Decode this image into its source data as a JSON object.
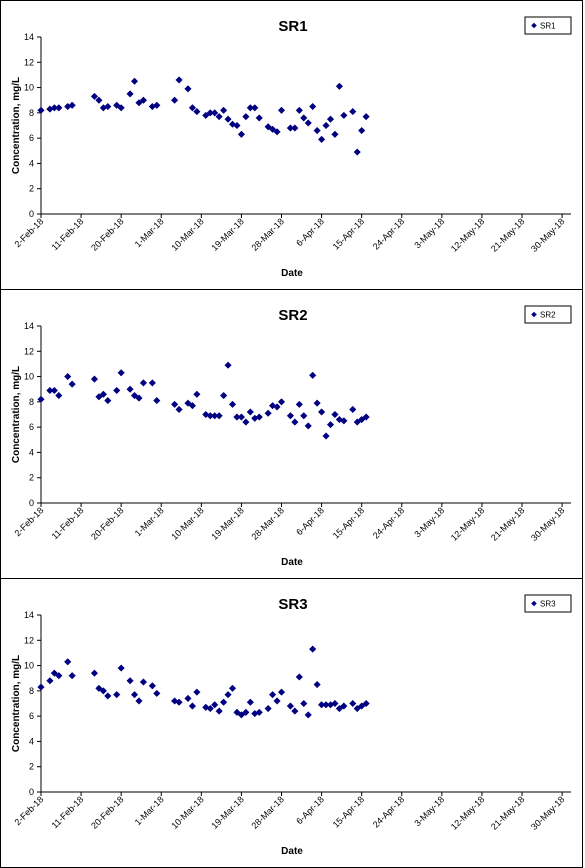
{
  "chart_data": [
    {
      "type": "scatter",
      "title": "SR1",
      "xlabel": "Date",
      "ylabel": "Concentration, mg/L",
      "ylim": [
        0,
        14
      ],
      "yticks": [
        0,
        2,
        4,
        6,
        8,
        10,
        12,
        14
      ],
      "xrange": [
        "2018-02-02",
        "2018-06-01"
      ],
      "xticks": [
        "2-Feb-18",
        "11-Feb-18",
        "20-Feb-18",
        "1-Mar-18",
        "10-Mar-18",
        "19-Mar-18",
        "28-Mar-18",
        "6-Apr-18",
        "15-Apr-18",
        "24-Apr-18",
        "3-May-18",
        "12-May-18",
        "21-May-18",
        "30-May-18"
      ],
      "grid": false,
      "legend_position": "top-right",
      "color": "#000080",
      "series": [
        {
          "name": "SR1",
          "x": [
            "2018-02-02",
            "2018-02-04",
            "2018-02-05",
            "2018-02-06",
            "2018-02-08",
            "2018-02-09",
            "2018-02-14",
            "2018-02-15",
            "2018-02-16",
            "2018-02-17",
            "2018-02-19",
            "2018-02-20",
            "2018-02-22",
            "2018-02-23",
            "2018-02-24",
            "2018-02-25",
            "2018-02-27",
            "2018-02-28",
            "2018-03-04",
            "2018-03-05",
            "2018-03-07",
            "2018-03-08",
            "2018-03-09",
            "2018-03-11",
            "2018-03-12",
            "2018-03-13",
            "2018-03-14",
            "2018-03-15",
            "2018-03-16",
            "2018-03-17",
            "2018-03-18",
            "2018-03-19",
            "2018-03-20",
            "2018-03-21",
            "2018-03-22",
            "2018-03-23",
            "2018-03-25",
            "2018-03-26",
            "2018-03-27",
            "2018-03-28",
            "2018-03-30",
            "2018-03-31",
            "2018-04-01",
            "2018-04-02",
            "2018-04-03",
            "2018-04-04",
            "2018-04-05",
            "2018-04-06",
            "2018-04-07",
            "2018-04-08",
            "2018-04-09",
            "2018-04-10",
            "2018-04-11",
            "2018-04-13",
            "2018-04-14",
            "2018-04-15",
            "2018-04-16"
          ],
          "y": [
            8.2,
            8.3,
            8.4,
            8.4,
            8.5,
            8.6,
            9.3,
            9.0,
            8.4,
            8.5,
            8.6,
            8.4,
            9.5,
            10.5,
            8.8,
            9.0,
            8.5,
            8.6,
            9.0,
            10.6,
            9.9,
            8.4,
            8.1,
            7.8,
            8.0,
            8.0,
            7.7,
            8.2,
            7.5,
            7.1,
            7.0,
            6.3,
            7.7,
            8.4,
            8.4,
            7.6,
            6.9,
            6.7,
            6.5,
            8.2,
            6.8,
            6.8,
            8.2,
            7.6,
            7.2,
            8.5,
            6.6,
            5.9,
            7.0,
            7.5,
            6.3,
            10.1,
            7.8,
            8.1,
            4.9,
            6.6,
            7.7
          ]
        }
      ]
    },
    {
      "type": "scatter",
      "title": "SR2",
      "xlabel": "Date",
      "ylabel": "Concentration, mg/L",
      "ylim": [
        0,
        14
      ],
      "yticks": [
        0,
        2,
        4,
        6,
        8,
        10,
        12,
        14
      ],
      "xrange": [
        "2018-02-02",
        "2018-06-01"
      ],
      "xticks": [
        "2-Feb-18",
        "11-Feb-18",
        "20-Feb-18",
        "1-Mar-18",
        "10-Mar-18",
        "19-Mar-18",
        "28-Mar-18",
        "6-Apr-18",
        "15-Apr-18",
        "24-Apr-18",
        "3-May-18",
        "12-May-18",
        "21-May-18",
        "30-May-18"
      ],
      "grid": false,
      "legend_position": "top-right",
      "color": "#000080",
      "series": [
        {
          "name": "SR2",
          "x": [
            "2018-02-02",
            "2018-02-04",
            "2018-02-05",
            "2018-02-06",
            "2018-02-08",
            "2018-02-09",
            "2018-02-14",
            "2018-02-15",
            "2018-02-16",
            "2018-02-17",
            "2018-02-19",
            "2018-02-20",
            "2018-02-22",
            "2018-02-23",
            "2018-02-24",
            "2018-02-25",
            "2018-02-27",
            "2018-02-28",
            "2018-03-04",
            "2018-03-05",
            "2018-03-07",
            "2018-03-08",
            "2018-03-09",
            "2018-03-11",
            "2018-03-12",
            "2018-03-13",
            "2018-03-14",
            "2018-03-15",
            "2018-03-16",
            "2018-03-17",
            "2018-03-18",
            "2018-03-19",
            "2018-03-20",
            "2018-03-21",
            "2018-03-22",
            "2018-03-23",
            "2018-03-25",
            "2018-03-26",
            "2018-03-27",
            "2018-03-28",
            "2018-03-30",
            "2018-03-31",
            "2018-04-01",
            "2018-04-02",
            "2018-04-03",
            "2018-04-04",
            "2018-04-05",
            "2018-04-06",
            "2018-04-07",
            "2018-04-08",
            "2018-04-09",
            "2018-04-10",
            "2018-04-11",
            "2018-04-13",
            "2018-04-14",
            "2018-04-15",
            "2018-04-16"
          ],
          "y": [
            8.2,
            8.9,
            8.9,
            8.5,
            10.0,
            9.4,
            9.8,
            8.4,
            8.6,
            8.1,
            8.9,
            10.3,
            9.0,
            8.5,
            8.3,
            9.5,
            9.5,
            8.1,
            7.8,
            7.4,
            7.9,
            7.7,
            8.6,
            7.0,
            6.9,
            6.9,
            6.9,
            8.5,
            10.9,
            7.8,
            6.8,
            6.8,
            6.4,
            7.2,
            6.7,
            6.8,
            7.1,
            7.7,
            7.6,
            8.0,
            6.9,
            6.4,
            7.8,
            6.9,
            6.1,
            10.1,
            7.9,
            7.2,
            5.3,
            6.2,
            7.0,
            6.6,
            6.5,
            7.4,
            6.4,
            6.6,
            6.8
          ]
        }
      ]
    },
    {
      "type": "scatter",
      "title": "SR3",
      "xlabel": "Date",
      "ylabel": "Concentration, mg/L",
      "ylim": [
        0,
        14
      ],
      "yticks": [
        0,
        2,
        4,
        6,
        8,
        10,
        12,
        14
      ],
      "xrange": [
        "2018-02-02",
        "2018-06-01"
      ],
      "xticks": [
        "2-Feb-18",
        "11-Feb-18",
        "20-Feb-18",
        "1-Mar-18",
        "10-Mar-18",
        "19-Mar-18",
        "28-Mar-18",
        "6-Apr-18",
        "15-Apr-18",
        "24-Apr-18",
        "3-May-18",
        "12-May-18",
        "21-May-18",
        "30-May-18"
      ],
      "grid": false,
      "legend_position": "top-right",
      "color": "#000080",
      "series": [
        {
          "name": "SR3",
          "x": [
            "2018-02-02",
            "2018-02-04",
            "2018-02-05",
            "2018-02-06",
            "2018-02-08",
            "2018-02-09",
            "2018-02-14",
            "2018-02-15",
            "2018-02-16",
            "2018-02-17",
            "2018-02-19",
            "2018-02-20",
            "2018-02-22",
            "2018-02-23",
            "2018-02-24",
            "2018-02-25",
            "2018-02-27",
            "2018-02-28",
            "2018-03-04",
            "2018-03-05",
            "2018-03-07",
            "2018-03-08",
            "2018-03-09",
            "2018-03-11",
            "2018-03-12",
            "2018-03-13",
            "2018-03-14",
            "2018-03-15",
            "2018-03-16",
            "2018-03-17",
            "2018-03-18",
            "2018-03-19",
            "2018-03-20",
            "2018-03-21",
            "2018-03-22",
            "2018-03-23",
            "2018-03-25",
            "2018-03-26",
            "2018-03-27",
            "2018-03-28",
            "2018-03-30",
            "2018-03-31",
            "2018-04-01",
            "2018-04-02",
            "2018-04-03",
            "2018-04-04",
            "2018-04-05",
            "2018-04-06",
            "2018-04-07",
            "2018-04-08",
            "2018-04-09",
            "2018-04-10",
            "2018-04-11",
            "2018-04-13",
            "2018-04-14",
            "2018-04-15",
            "2018-04-16"
          ],
          "y": [
            8.3,
            8.8,
            9.4,
            9.2,
            10.3,
            9.2,
            9.4,
            8.2,
            8.0,
            7.6,
            7.7,
            9.8,
            8.8,
            7.7,
            7.2,
            8.7,
            8.4,
            7.8,
            7.2,
            7.1,
            7.4,
            6.8,
            7.9,
            6.7,
            6.6,
            6.9,
            6.4,
            7.1,
            7.7,
            8.2,
            6.3,
            6.1,
            6.3,
            7.1,
            6.2,
            6.3,
            6.6,
            7.7,
            7.2,
            7.9,
            6.8,
            6.4,
            9.1,
            7.0,
            6.1,
            11.3,
            8.5,
            6.9,
            6.9,
            6.9,
            7.0,
            6.6,
            6.8,
            7.0,
            6.6,
            6.8,
            7.0
          ]
        }
      ]
    }
  ]
}
